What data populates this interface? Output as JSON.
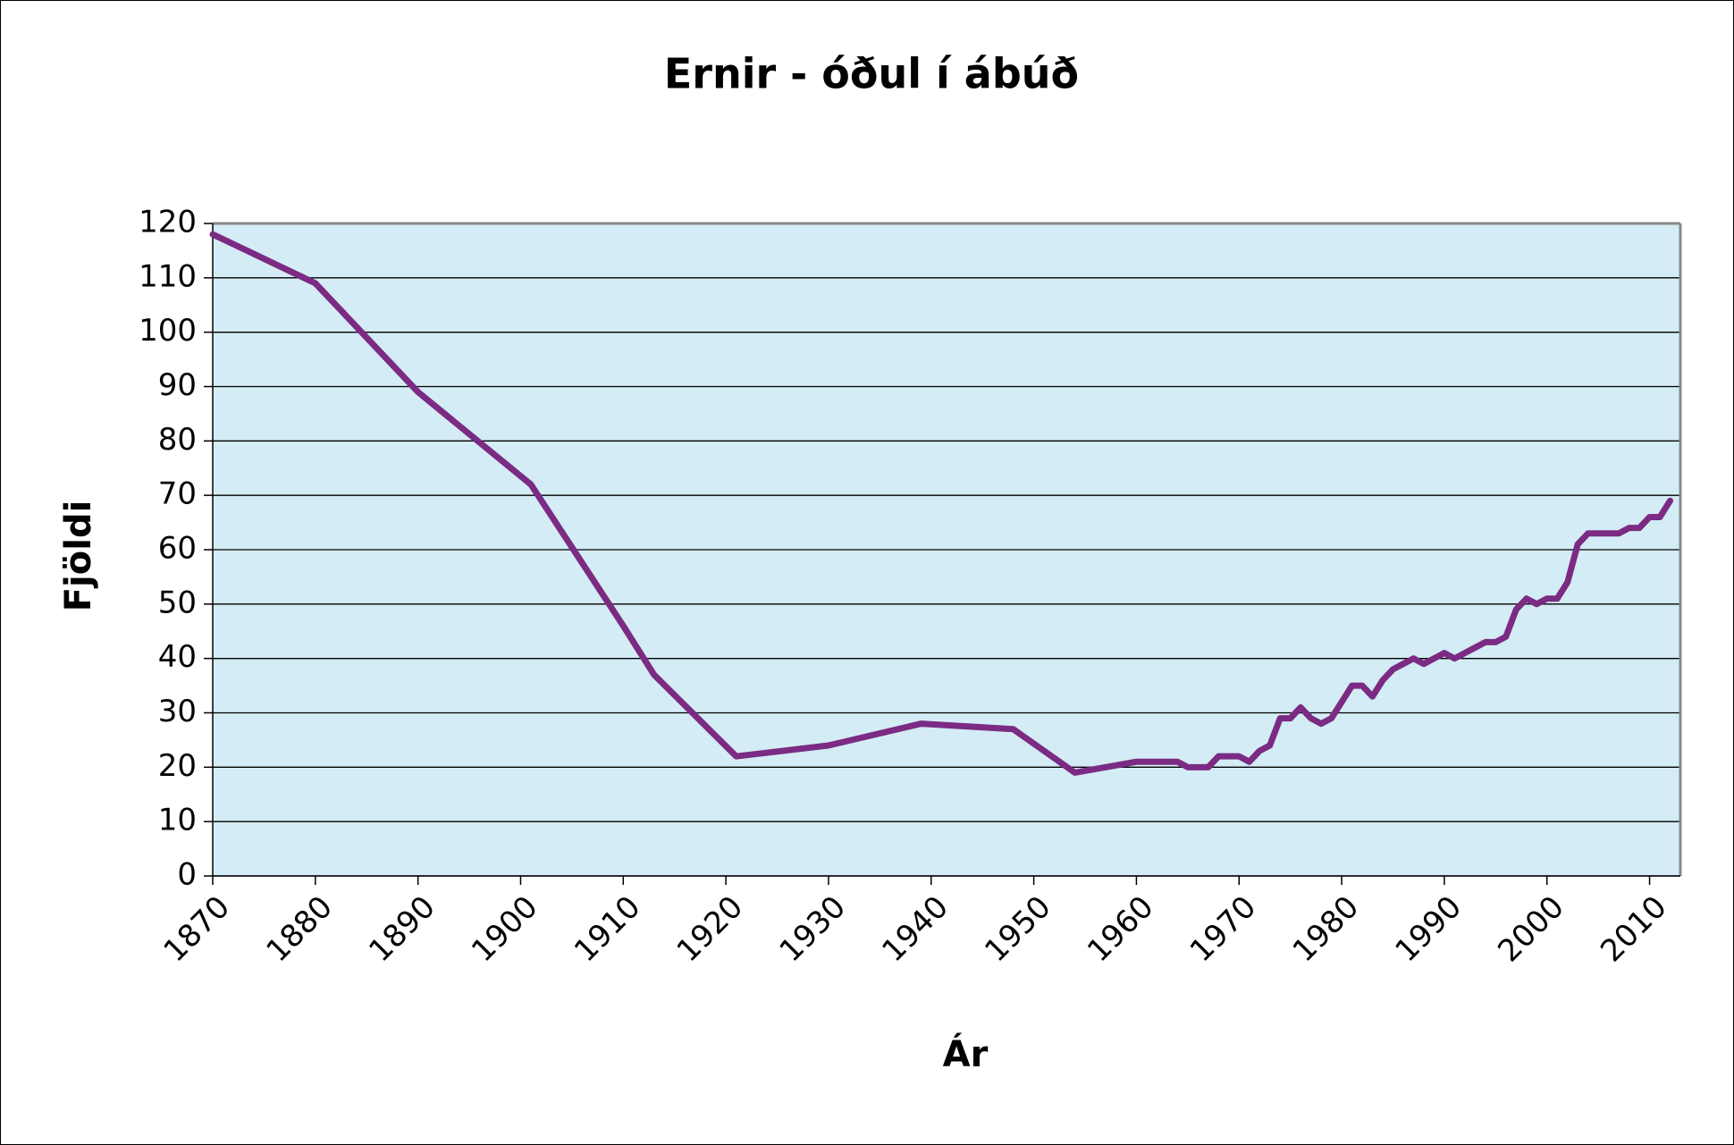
{
  "chart_data": {
    "type": "line",
    "title": "Ernir - óðul í ábúð",
    "x_label": "Ár",
    "y_label": "Fjöldi",
    "x": [
      1870,
      1880,
      1890,
      1901,
      1910,
      1913,
      1921,
      1930,
      1939,
      1948,
      1954,
      1960,
      1964,
      1965,
      1967,
      1968,
      1970,
      1971,
      1972,
      1973,
      1974,
      1975,
      1976,
      1977,
      1978,
      1979,
      1980,
      1981,
      1982,
      1983,
      1984,
      1985,
      1986,
      1987,
      1988,
      1989,
      1990,
      1991,
      1992,
      1993,
      1994,
      1995,
      1996,
      1997,
      1998,
      1999,
      2000,
      2001,
      2002,
      2003,
      2004,
      2005,
      2006,
      2007,
      2008,
      2009,
      2010,
      2011,
      2012
    ],
    "series": [
      {
        "name": "Ernir",
        "color": "#7b2b83",
        "values": [
          118,
          109,
          89,
          72,
          46,
          37,
          22,
          24,
          28,
          27,
          19,
          21,
          21,
          20,
          20,
          22,
          22,
          21,
          23,
          24,
          29,
          29,
          31,
          29,
          28,
          29,
          32,
          35,
          35,
          33,
          36,
          38,
          39,
          40,
          39,
          40,
          41,
          40,
          41,
          42,
          43,
          43,
          44,
          49,
          51,
          50,
          51,
          51,
          54,
          61,
          63,
          63,
          63,
          63,
          64,
          64,
          66,
          66,
          69
        ]
      }
    ],
    "xlim": [
      1870,
      2013
    ],
    "xticks": [
      1870,
      1880,
      1890,
      1900,
      1910,
      1920,
      1930,
      1940,
      1950,
      1960,
      1970,
      1980,
      1990,
      2000,
      2010
    ],
    "ylim": [
      0,
      120
    ],
    "yticks": [
      0,
      10,
      20,
      30,
      40,
      50,
      60,
      70,
      80,
      90,
      100,
      110,
      120
    ],
    "grid": true,
    "plot_background": "#d4ecf5"
  }
}
